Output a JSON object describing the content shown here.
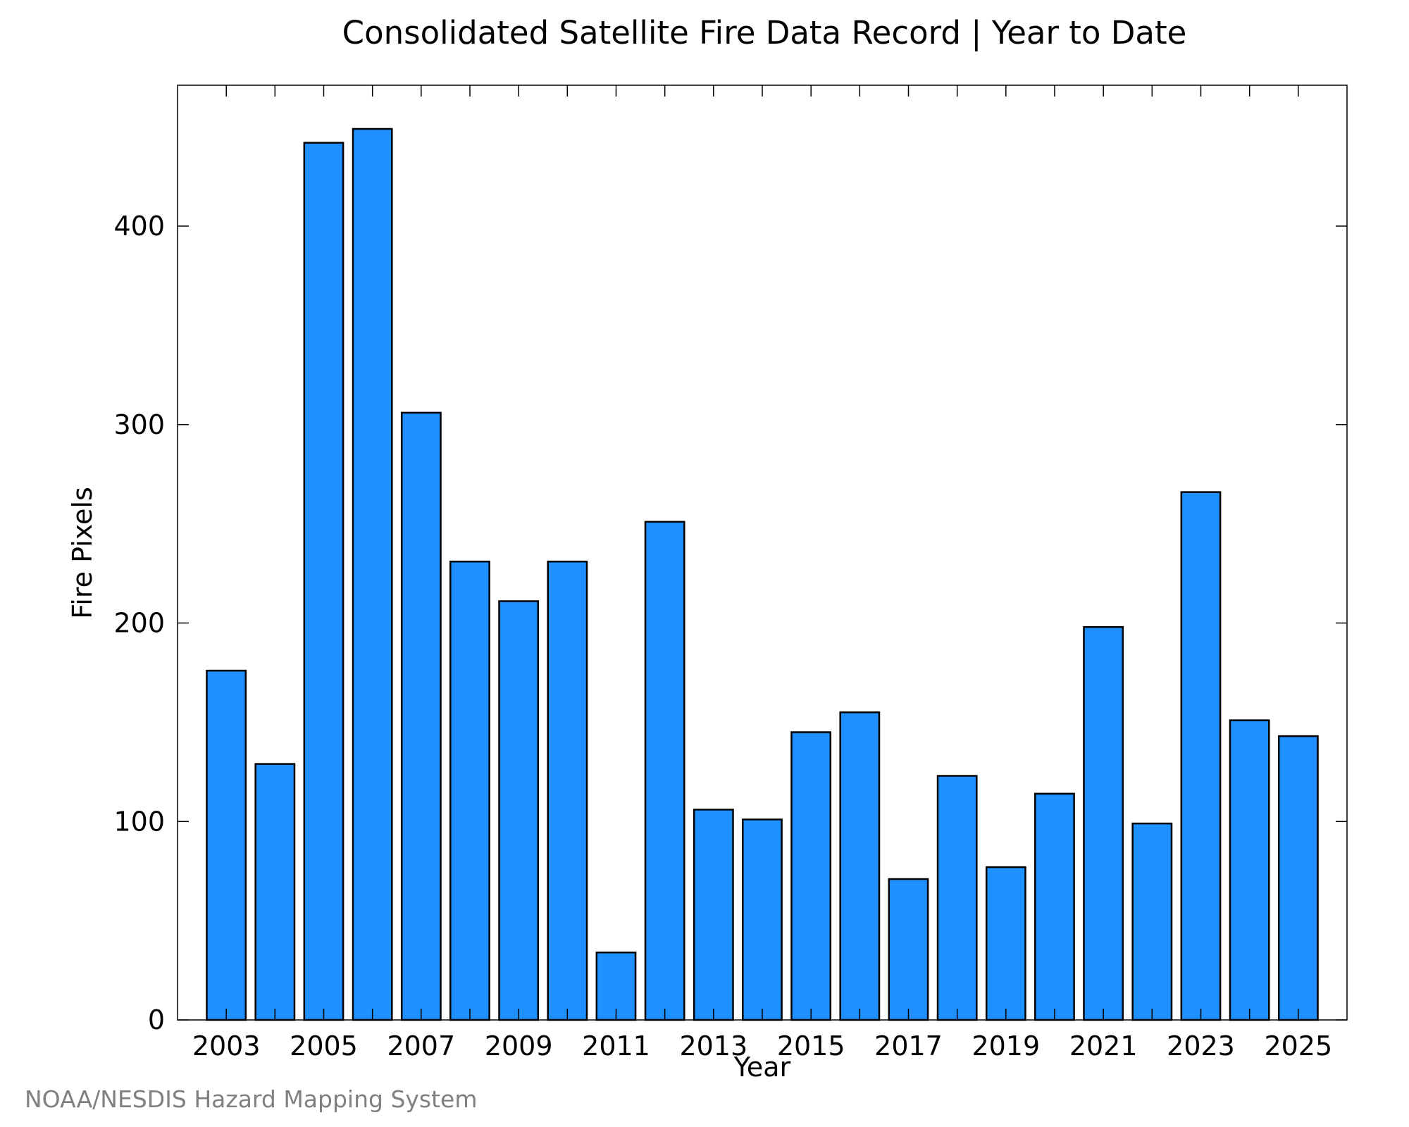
{
  "chart_data": {
    "type": "bar",
    "title": "Consolidated Satellite Fire Data Record | Year to Date",
    "xlabel": "Year",
    "ylabel": "Fire Pixels",
    "categories": [
      "2003",
      "2004",
      "2005",
      "2006",
      "2007",
      "2008",
      "2009",
      "2010",
      "2011",
      "2012",
      "2013",
      "2014",
      "2015",
      "2016",
      "2017",
      "2018",
      "2019",
      "2020",
      "2021",
      "2022",
      "2023",
      "2024",
      "2025"
    ],
    "values": [
      176,
      129,
      442,
      449,
      306,
      231,
      211,
      231,
      34,
      251,
      106,
      101,
      145,
      155,
      71,
      123,
      77,
      114,
      198,
      99,
      266,
      151,
      143
    ],
    "x_tick_labels": [
      "2003",
      "2005",
      "2007",
      "2009",
      "2011",
      "2013",
      "2015",
      "2017",
      "2019",
      "2021",
      "2023",
      "2025"
    ],
    "y_tick_labels": [
      "0",
      "100",
      "200",
      "300",
      "400"
    ],
    "y_ticks": [
      0,
      100,
      200,
      300,
      400
    ],
    "ylim": [
      0,
      471
    ],
    "grid": false,
    "legend": "none",
    "bar_color": "#1e90ff",
    "bar_edge_color": "#000000"
  },
  "footer": {
    "source_text": "NOAA/NESDIS Hazard Mapping System",
    "color": "#808080"
  }
}
